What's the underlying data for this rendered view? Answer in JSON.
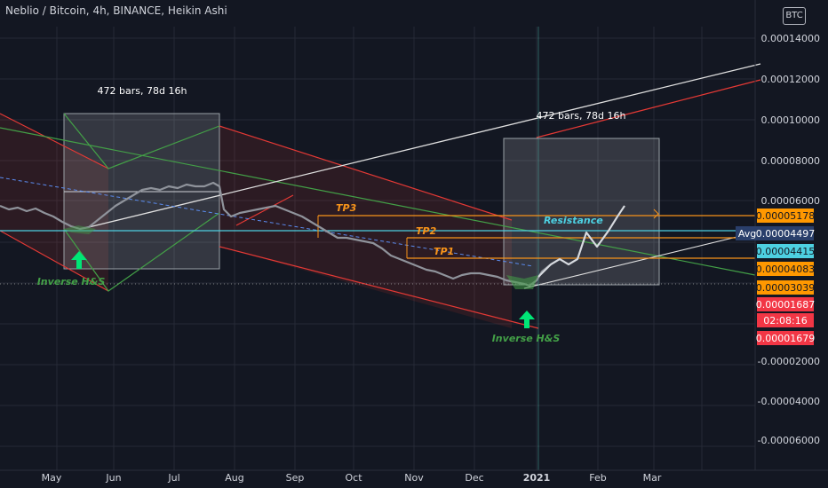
{
  "header": {
    "title": "Neblio / Bitcoin, 4h, BINANCE, Heikin Ashi",
    "currency_badge": "BTC"
  },
  "colors": {
    "background": "#131722",
    "grid": "#2a2e39",
    "text": "#d1d4dc",
    "channel_red": "#e53935",
    "channel_green": "#43a047",
    "trend_white": "#e0e0e0",
    "level_orange": "#f7931a",
    "level_cyan": "#4dd0e1",
    "tag_orange": "#ff9800",
    "tag_red": "#f23645",
    "tag_navy": "#2a3f6b",
    "arrow_green": "#00e676"
  },
  "chart_data": {
    "type": "line",
    "symbol": "NEBL/BTC",
    "interval": "4h",
    "exchange": "BINANCE",
    "candle_style": "Heikin Ashi",
    "x_ticks": [
      "May",
      "Jun",
      "Jul",
      "Aug",
      "Sep",
      "Oct",
      "Nov",
      "Dec",
      "2021",
      "Feb",
      "Mar"
    ],
    "y_ticks": [
      "0.00014000",
      "0.00012000",
      "0.00010000",
      "0.00008000",
      "0.00006000",
      "-0.00002000",
      "-0.00004000",
      "-0.00006000"
    ],
    "ylim": [
      -6.8e-05,
      0.000154
    ],
    "price_series_approx": {
      "x": [
        "2020-04-20",
        "2020-05-10",
        "2020-05-25",
        "2020-06-15",
        "2020-07-01",
        "2020-07-20",
        "2020-07-28",
        "2020-08-10",
        "2020-09-01",
        "2020-09-15",
        "2020-10-01",
        "2020-10-20",
        "2020-11-05",
        "2020-11-25",
        "2020-12-15",
        "2020-12-27",
        "2021-01-10",
        "2021-01-25",
        "2021-02-10"
      ],
      "y": [
        4.8e-05,
        4.2e-05,
        3.9e-05,
        4.9e-05,
        5.4e-05,
        5.5e-05,
        4.9e-05,
        4.6e-05,
        5e-05,
        4.2e-05,
        3.8e-05,
        3.4e-05,
        2.8e-05,
        2.5e-05,
        2.5e-05,
        2.2e-05,
        3e-05,
        4.4e-05,
        5.6e-05
      ]
    },
    "price_tags": [
      {
        "label": "0.00005178",
        "value": 5.178e-05,
        "color": "#ff9800"
      },
      {
        "label": "0.00004497",
        "value": 4.497e-05,
        "color": "#2a3f6b",
        "prefix": "Avg"
      },
      {
        "label": "0.00004415",
        "value": 4.415e-05,
        "color": "#4dd0e1"
      },
      {
        "label": "0.00004083",
        "value": 4.083e-05,
        "color": "#ff9800"
      },
      {
        "label": "0.00003039",
        "value": 3.039e-05,
        "color": "#ff9800"
      },
      {
        "label": "0.00001687",
        "value": 1.687e-05,
        "color": "#f23645"
      },
      {
        "label": "02:08:16",
        "value": null,
        "color": "#f23645"
      },
      {
        "label": "0.00001679",
        "value": 1.679e-05,
        "color": "#f23645"
      }
    ],
    "levels": [
      {
        "label": "TP3",
        "value": 5.178e-05,
        "color": "#f7931a"
      },
      {
        "label": "TP2",
        "value": 4.083e-05,
        "color": "#f7931a"
      },
      {
        "label": "TP1",
        "value": 3.039e-05,
        "color": "#f7931a"
      },
      {
        "label": "Resistance",
        "value": 4.415e-05,
        "color": "#4dd0e1"
      }
    ],
    "annotations": {
      "bars_range_1": "472 bars, 78d 16h",
      "bars_range_2": "472 bars, 78d 16h",
      "pattern_1": "Inverse H&S",
      "pattern_2": "Inverse H&S"
    },
    "grid": true
  }
}
